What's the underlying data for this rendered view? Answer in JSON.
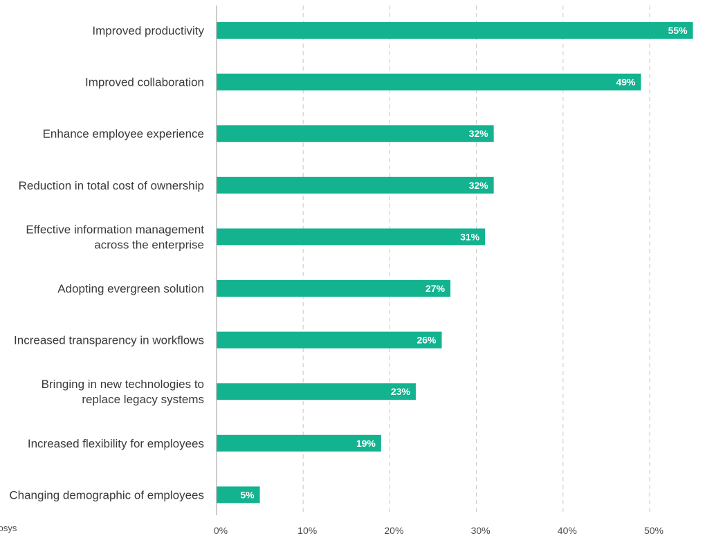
{
  "chart_data": {
    "type": "bar",
    "orientation": "horizontal",
    "categories": [
      "Improved productivity",
      "Improved collaboration",
      "Enhance employee experience",
      "Reduction in total cost of ownership",
      "Effective information management across the enterprise",
      "Adopting evergreen solution",
      "Increased transparency in workflows",
      "Bringing in new technologies to replace legacy systems",
      "Increased flexibility for employees",
      "Changing demographic of employees"
    ],
    "category_lines": [
      [
        "Improved productivity"
      ],
      [
        "Improved collaboration"
      ],
      [
        "Enhance employee experience"
      ],
      [
        "Reduction in total cost of ownership"
      ],
      [
        "Effective information management",
        "across the enterprise"
      ],
      [
        "Adopting evergreen solution"
      ],
      [
        "Increased transparency in workflows"
      ],
      [
        "Bringing in new technologies to",
        "replace legacy systems"
      ],
      [
        "Increased flexibility for employees"
      ],
      [
        "Changing demographic of employees"
      ]
    ],
    "values": [
      55,
      49,
      32,
      32,
      31,
      27,
      26,
      23,
      19,
      5
    ],
    "data_labels": [
      "55%",
      "49%",
      "32%",
      "32%",
      "31%",
      "27%",
      "26%",
      "23%",
      "19%",
      "5%"
    ],
    "xlim": [
      0,
      55
    ],
    "xticks": [
      0,
      10,
      20,
      30,
      40,
      50
    ],
    "xtick_labels": [
      "0%",
      "10%",
      "20%",
      "30%",
      "40%",
      "50%"
    ],
    "grid": "vertical dashed",
    "title": "",
    "xlabel": "",
    "ylabel": "",
    "bar_color": "#13b38f",
    "grid_color": "#c8c8c8",
    "axis_color": "#9a9a9a"
  },
  "source": "fosys"
}
